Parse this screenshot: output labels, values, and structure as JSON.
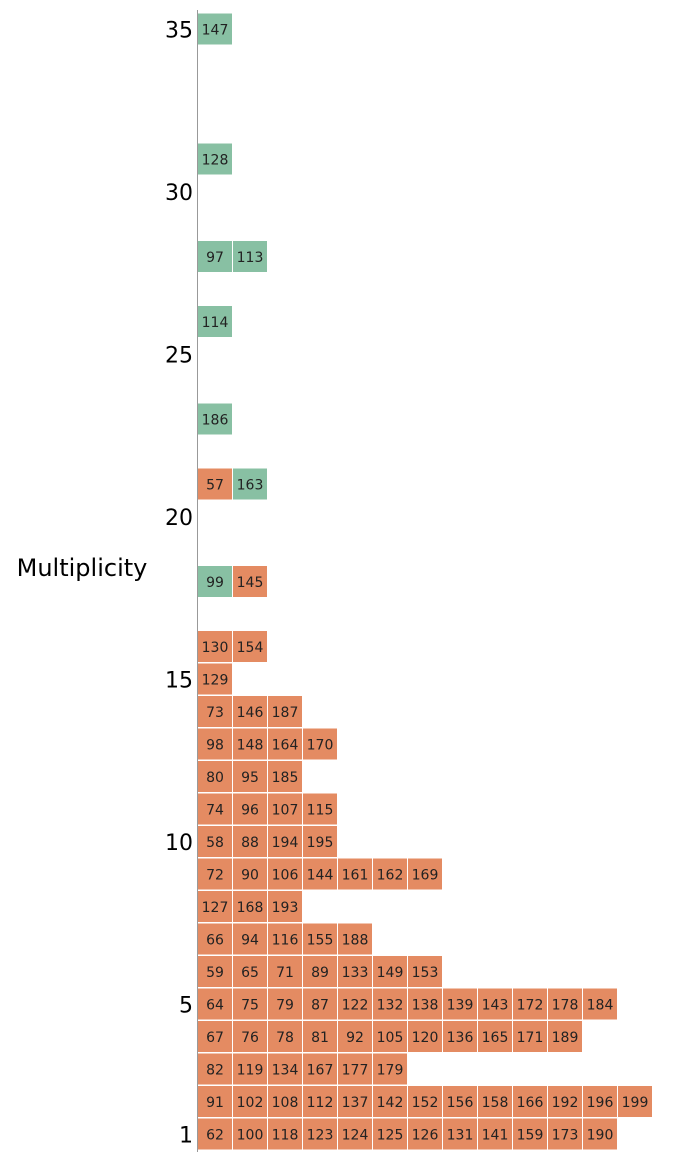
{
  "chart_data": {
    "type": "table",
    "ylabel": "Multiplicity",
    "yticks": [
      1,
      5,
      10,
      15,
      20,
      25,
      30,
      35
    ],
    "colors": {
      "orange": "#e48b62",
      "green": "#88c0a3"
    },
    "rows": [
      {
        "multiplicity": 1,
        "cells": [
          {
            "v": "62",
            "c": "orange"
          },
          {
            "v": "100",
            "c": "orange"
          },
          {
            "v": "118",
            "c": "orange"
          },
          {
            "v": "123",
            "c": "orange"
          },
          {
            "v": "124",
            "c": "orange"
          },
          {
            "v": "125",
            "c": "orange"
          },
          {
            "v": "126",
            "c": "orange"
          },
          {
            "v": "131",
            "c": "orange"
          },
          {
            "v": "141",
            "c": "orange"
          },
          {
            "v": "159",
            "c": "orange"
          },
          {
            "v": "173",
            "c": "orange"
          },
          {
            "v": "190",
            "c": "orange"
          }
        ]
      },
      {
        "multiplicity": 2,
        "cells": [
          {
            "v": "91",
            "c": "orange"
          },
          {
            "v": "102",
            "c": "orange"
          },
          {
            "v": "108",
            "c": "orange"
          },
          {
            "v": "112",
            "c": "orange"
          },
          {
            "v": "137",
            "c": "orange"
          },
          {
            "v": "142",
            "c": "orange"
          },
          {
            "v": "152",
            "c": "orange"
          },
          {
            "v": "156",
            "c": "orange"
          },
          {
            "v": "158",
            "c": "orange"
          },
          {
            "v": "166",
            "c": "orange"
          },
          {
            "v": "192",
            "c": "orange"
          },
          {
            "v": "196",
            "c": "orange"
          },
          {
            "v": "199",
            "c": "orange"
          }
        ]
      },
      {
        "multiplicity": 3,
        "cells": [
          {
            "v": "82",
            "c": "orange"
          },
          {
            "v": "119",
            "c": "orange"
          },
          {
            "v": "134",
            "c": "orange"
          },
          {
            "v": "167",
            "c": "orange"
          },
          {
            "v": "177",
            "c": "orange"
          },
          {
            "v": "179",
            "c": "orange"
          }
        ]
      },
      {
        "multiplicity": 4,
        "cells": [
          {
            "v": "67",
            "c": "orange"
          },
          {
            "v": "76",
            "c": "orange"
          },
          {
            "v": "78",
            "c": "orange"
          },
          {
            "v": "81",
            "c": "orange"
          },
          {
            "v": "92",
            "c": "orange"
          },
          {
            "v": "105",
            "c": "orange"
          },
          {
            "v": "120",
            "c": "orange"
          },
          {
            "v": "136",
            "c": "orange"
          },
          {
            "v": "165",
            "c": "orange"
          },
          {
            "v": "171",
            "c": "orange"
          },
          {
            "v": "189",
            "c": "orange"
          }
        ]
      },
      {
        "multiplicity": 5,
        "cells": [
          {
            "v": "64",
            "c": "orange"
          },
          {
            "v": "75",
            "c": "orange"
          },
          {
            "v": "79",
            "c": "orange"
          },
          {
            "v": "87",
            "c": "orange"
          },
          {
            "v": "122",
            "c": "orange"
          },
          {
            "v": "132",
            "c": "orange"
          },
          {
            "v": "138",
            "c": "orange"
          },
          {
            "v": "139",
            "c": "orange"
          },
          {
            "v": "143",
            "c": "orange"
          },
          {
            "v": "172",
            "c": "orange"
          },
          {
            "v": "178",
            "c": "orange"
          },
          {
            "v": "184",
            "c": "orange"
          }
        ]
      },
      {
        "multiplicity": 6,
        "cells": [
          {
            "v": "59",
            "c": "orange"
          },
          {
            "v": "65",
            "c": "orange"
          },
          {
            "v": "71",
            "c": "orange"
          },
          {
            "v": "89",
            "c": "orange"
          },
          {
            "v": "133",
            "c": "orange"
          },
          {
            "v": "149",
            "c": "orange"
          },
          {
            "v": "153",
            "c": "orange"
          }
        ]
      },
      {
        "multiplicity": 7,
        "cells": [
          {
            "v": "66",
            "c": "orange"
          },
          {
            "v": "94",
            "c": "orange"
          },
          {
            "v": "116",
            "c": "orange"
          },
          {
            "v": "155",
            "c": "orange"
          },
          {
            "v": "188",
            "c": "orange"
          }
        ]
      },
      {
        "multiplicity": 8,
        "cells": [
          {
            "v": "127",
            "c": "orange"
          },
          {
            "v": "168",
            "c": "orange"
          },
          {
            "v": "193",
            "c": "orange"
          }
        ]
      },
      {
        "multiplicity": 9,
        "cells": [
          {
            "v": "72",
            "c": "orange"
          },
          {
            "v": "90",
            "c": "orange"
          },
          {
            "v": "106",
            "c": "orange"
          },
          {
            "v": "144",
            "c": "orange"
          },
          {
            "v": "161",
            "c": "orange"
          },
          {
            "v": "162",
            "c": "orange"
          },
          {
            "v": "169",
            "c": "orange"
          }
        ]
      },
      {
        "multiplicity": 10,
        "cells": [
          {
            "v": "58",
            "c": "orange"
          },
          {
            "v": "88",
            "c": "orange"
          },
          {
            "v": "194",
            "c": "orange"
          },
          {
            "v": "195",
            "c": "orange"
          }
        ]
      },
      {
        "multiplicity": 11,
        "cells": [
          {
            "v": "74",
            "c": "orange"
          },
          {
            "v": "96",
            "c": "orange"
          },
          {
            "v": "107",
            "c": "orange"
          },
          {
            "v": "115",
            "c": "orange"
          }
        ]
      },
      {
        "multiplicity": 12,
        "cells": [
          {
            "v": "80",
            "c": "orange"
          },
          {
            "v": "95",
            "c": "orange"
          },
          {
            "v": "185",
            "c": "orange"
          }
        ]
      },
      {
        "multiplicity": 13,
        "cells": [
          {
            "v": "98",
            "c": "orange"
          },
          {
            "v": "148",
            "c": "orange"
          },
          {
            "v": "164",
            "c": "orange"
          },
          {
            "v": "170",
            "c": "orange"
          }
        ]
      },
      {
        "multiplicity": 14,
        "cells": [
          {
            "v": "73",
            "c": "orange"
          },
          {
            "v": "146",
            "c": "orange"
          },
          {
            "v": "187",
            "c": "orange"
          }
        ]
      },
      {
        "multiplicity": 15,
        "cells": [
          {
            "v": "129",
            "c": "orange"
          }
        ]
      },
      {
        "multiplicity": 16,
        "cells": [
          {
            "v": "130",
            "c": "orange"
          },
          {
            "v": "154",
            "c": "orange"
          }
        ]
      },
      {
        "multiplicity": 18,
        "cells": [
          {
            "v": "99",
            "c": "green"
          },
          {
            "v": "145",
            "c": "orange"
          }
        ]
      },
      {
        "multiplicity": 21,
        "cells": [
          {
            "v": "57",
            "c": "orange"
          },
          {
            "v": "163",
            "c": "green"
          }
        ]
      },
      {
        "multiplicity": 23,
        "cells": [
          {
            "v": "186",
            "c": "green"
          }
        ]
      },
      {
        "multiplicity": 26,
        "cells": [
          {
            "v": "114",
            "c": "green"
          }
        ]
      },
      {
        "multiplicity": 28,
        "cells": [
          {
            "v": "97",
            "c": "green"
          },
          {
            "v": "113",
            "c": "green"
          }
        ]
      },
      {
        "multiplicity": 31,
        "cells": [
          {
            "v": "128",
            "c": "green"
          }
        ]
      },
      {
        "multiplicity": 35,
        "cells": [
          {
            "v": "147",
            "c": "green"
          }
        ]
      }
    ]
  }
}
